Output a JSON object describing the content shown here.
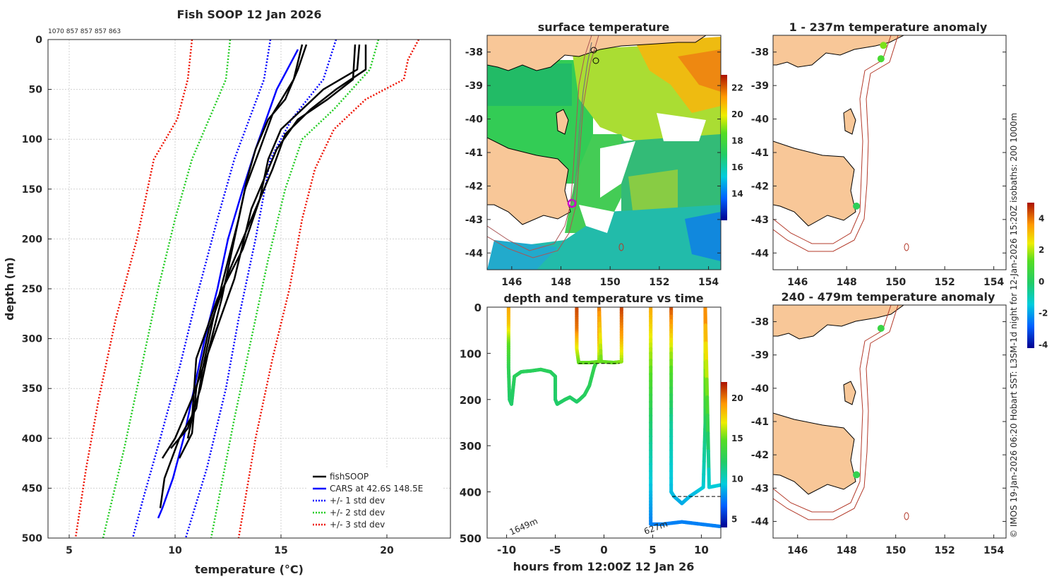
{
  "colors": {
    "land": "#f8c798",
    "coast": "#000000",
    "isobath": "#b33a2a",
    "fish": "#000000",
    "cars": "#0000ff",
    "sd1": "#0000ff",
    "sd2": "#22cc22",
    "sd3": "#ee1100"
  },
  "chart_data": [
    {
      "id": "profile",
      "type": "line",
      "title": "Fish SOOP 12 Jan 2026",
      "annotation": "1070 857 857 857 863",
      "xlabel": "temperature (°C)",
      "ylabel": "depth (m)",
      "xlim": [
        4,
        23
      ],
      "ylim": [
        500,
        0
      ],
      "xticks": [
        "5",
        "10",
        "15",
        "20"
      ],
      "yticks": [
        "0",
        "50",
        "100",
        "150",
        "200",
        "250",
        "300",
        "350",
        "400",
        "450",
        "500"
      ],
      "legend": [
        "fishSOOP",
        "CARS at 42.6S 148.5E",
        "+/- 1 std dev",
        "+/- 2 std dev",
        "+/- 3 std dev"
      ],
      "series": [
        {
          "name": "CARS at 42.6S 148.5E",
          "style": "solid",
          "color": "cars",
          "points": [
            [
              15.8,
              10
            ],
            [
              15.3,
              30
            ],
            [
              14.8,
              50
            ],
            [
              14.3,
              80
            ],
            [
              13.8,
              110
            ],
            [
              13.2,
              150
            ],
            [
              12.5,
              200
            ],
            [
              12.0,
              250
            ],
            [
              11.4,
              300
            ],
            [
              10.9,
              350
            ],
            [
              10.4,
              400
            ],
            [
              9.9,
              440
            ],
            [
              9.4,
              470
            ],
            [
              9.2,
              480
            ]
          ]
        },
        {
          "name": "-1 std dev",
          "style": "dot",
          "color": "sd1",
          "points": [
            [
              14.5,
              0
            ],
            [
              14.2,
              40
            ],
            [
              13.5,
              80
            ],
            [
              12.8,
              120
            ],
            [
              12.0,
              180
            ],
            [
              11.0,
              260
            ],
            [
              10.2,
              330
            ],
            [
              9.3,
              400
            ],
            [
              8.5,
              460
            ],
            [
              8.0,
              500
            ]
          ]
        },
        {
          "name": "+1 std dev",
          "style": "dot",
          "color": "sd1",
          "points": [
            [
              17.6,
              0
            ],
            [
              17.0,
              40
            ],
            [
              15.5,
              80
            ],
            [
              14.5,
              120
            ],
            [
              13.8,
              200
            ],
            [
              13.0,
              280
            ],
            [
              12.4,
              350
            ],
            [
              11.5,
              430
            ],
            [
              10.5,
              500
            ]
          ]
        },
        {
          "name": "-2 std dev",
          "style": "dot",
          "color": "sd2",
          "points": [
            [
              12.6,
              0
            ],
            [
              12.4,
              40
            ],
            [
              11.6,
              80
            ],
            [
              10.8,
              120
            ],
            [
              10.0,
              180
            ],
            [
              9.2,
              250
            ],
            [
              8.4,
              330
            ],
            [
              7.6,
              410
            ],
            [
              6.6,
              500
            ]
          ]
        },
        {
          "name": "+2 std dev",
          "style": "dot",
          "color": "sd2",
          "points": [
            [
              19.6,
              0
            ],
            [
              19.2,
              30
            ],
            [
              17.5,
              70
            ],
            [
              16.0,
              100
            ],
            [
              15.2,
              150
            ],
            [
              14.4,
              220
            ],
            [
              13.6,
              300
            ],
            [
              12.8,
              380
            ],
            [
              11.7,
              500
            ]
          ]
        },
        {
          "name": "-3 std dev",
          "style": "dot",
          "color": "sd3",
          "points": [
            [
              10.8,
              0
            ],
            [
              10.6,
              40
            ],
            [
              10.1,
              80
            ],
            [
              9.0,
              120
            ],
            [
              8.2,
              200
            ],
            [
              7.2,
              280
            ],
            [
              6.4,
              360
            ],
            [
              5.8,
              430
            ],
            [
              5.3,
              500
            ]
          ]
        },
        {
          "name": "+3 std dev",
          "style": "dot",
          "color": "sd3",
          "points": [
            [
              21.5,
              0
            ],
            [
              21.0,
              20
            ],
            [
              20.8,
              40
            ],
            [
              19.0,
              60
            ],
            [
              17.5,
              90
            ],
            [
              16.6,
              130
            ],
            [
              16.0,
              180
            ],
            [
              15.4,
              250
            ],
            [
              14.6,
              320
            ],
            [
              13.8,
              400
            ],
            [
              13.0,
              500
            ]
          ]
        },
        {
          "name": "fishSOOP 1",
          "style": "solid",
          "color": "fish",
          "points": [
            [
              16.2,
              5
            ],
            [
              15.8,
              30
            ],
            [
              15.2,
              60
            ],
            [
              14.4,
              80
            ],
            [
              13.8,
              110
            ],
            [
              13.4,
              140
            ],
            [
              13.0,
              180
            ],
            [
              12.4,
              230
            ],
            [
              11.8,
              280
            ],
            [
              11.3,
              330
            ],
            [
              11.0,
              370
            ],
            [
              10.2,
              400
            ],
            [
              9.5,
              440
            ],
            [
              9.3,
              470
            ]
          ]
        },
        {
          "name": "fishSOOP 2",
          "style": "solid",
          "color": "fish",
          "points": [
            [
              16.0,
              5
            ],
            [
              15.6,
              40
            ],
            [
              14.6,
              75
            ],
            [
              14.0,
              110
            ],
            [
              13.3,
              150
            ],
            [
              12.8,
              200
            ],
            [
              12.2,
              260
            ],
            [
              11.6,
              310
            ],
            [
              11.2,
              350
            ],
            [
              10.6,
              390
            ],
            [
              9.8,
              410
            ]
          ]
        },
        {
          "name": "fishSOOP 3",
          "style": "solid",
          "color": "fish",
          "points": [
            [
              18.7,
              5
            ],
            [
              18.6,
              30
            ],
            [
              17.0,
              50
            ],
            [
              16.0,
              70
            ],
            [
              15.0,
              90
            ],
            [
              14.4,
              120
            ],
            [
              14.0,
              160
            ],
            [
              13.2,
              210
            ],
            [
              12.0,
              260
            ],
            [
              11.0,
              320
            ],
            [
              10.8,
              380
            ],
            [
              10.6,
              400
            ]
          ]
        },
        {
          "name": "fishSOOP 4",
          "style": "solid",
          "color": "fish",
          "points": [
            [
              19.0,
              5
            ],
            [
              19.0,
              30
            ],
            [
              17.6,
              50
            ],
            [
              16.4,
              70
            ],
            [
              15.2,
              95
            ],
            [
              14.6,
              130
            ],
            [
              13.8,
              170
            ],
            [
              12.6,
              230
            ],
            [
              11.6,
              290
            ],
            [
              11.0,
              350
            ],
            [
              10.8,
              395
            ],
            [
              10.2,
              420
            ]
          ]
        },
        {
          "name": "fishSOOP 5",
          "style": "solid",
          "color": "fish",
          "points": [
            [
              18.5,
              5
            ],
            [
              18.4,
              40
            ],
            [
              17.2,
              60
            ],
            [
              15.8,
              80
            ],
            [
              14.8,
              110
            ],
            [
              13.6,
              170
            ],
            [
              12.8,
              240
            ],
            [
              11.8,
              300
            ],
            [
              10.8,
              360
            ],
            [
              10.0,
              400
            ],
            [
              9.4,
              420
            ]
          ]
        }
      ]
    },
    {
      "id": "sst",
      "type": "heatmap",
      "title": "surface temperature",
      "xlim": [
        145,
        154.5
      ],
      "ylim": [
        -44.5,
        -37.5
      ],
      "xticks": [
        "146",
        "148",
        "150",
        "152",
        "154"
      ],
      "yticks": [
        "-38",
        "-39",
        "-40",
        "-41",
        "-42",
        "-43",
        "-44"
      ],
      "colorbar": {
        "min": 12,
        "max": 23,
        "ticks": [
          "14",
          "16",
          "18",
          "20",
          "22"
        ]
      }
    },
    {
      "id": "depthtime",
      "type": "scatter",
      "title": "depth and temperature vs time",
      "xlabel": "hours from 12:00Z 12 Jan 26",
      "xlim": [
        -12,
        12
      ],
      "ylim": [
        500,
        0
      ],
      "xticks": [
        "-10",
        "-5",
        "0",
        "5",
        "10"
      ],
      "yticks": [
        "0",
        "100",
        "200",
        "300",
        "400",
        "500"
      ],
      "annotations": [
        "1649m",
        "627m"
      ],
      "colorbar": {
        "min": 4,
        "max": 22,
        "ticks": [
          "5",
          "10",
          "15",
          "20"
        ]
      },
      "tracks": [
        {
          "points": [
            [
              -9.8,
              0,
              19
            ],
            [
              -9.8,
              40,
              18
            ],
            [
              -9.8,
              80,
              15
            ],
            [
              -9.8,
              130,
              13
            ],
            [
              -9.7,
              200,
              12
            ],
            [
              -9.5,
              210,
              12
            ],
            [
              -9.2,
              150,
              12.5
            ],
            [
              -8.5,
              140,
              12.5
            ],
            [
              -7.5,
              138,
              12.5
            ],
            [
              -6.5,
              135,
              12.5
            ],
            [
              -5.5,
              140,
              12.5
            ],
            [
              -5,
              150,
              12.3
            ],
            [
              -5,
              200,
              12
            ],
            [
              -4.8,
              210,
              12
            ],
            [
              -4,
              200,
              12.2
            ],
            [
              -3.5,
              195,
              12.2
            ],
            [
              -2.8,
              205,
              12
            ],
            [
              -2.5,
              200,
              12.2
            ],
            [
              -2,
              190,
              12.4
            ],
            [
              -1.5,
              170,
              12.5
            ],
            [
              -1,
              130,
              13
            ],
            [
              -0.8,
              120,
              13.5
            ]
          ]
        },
        {
          "points": [
            [
              -2.8,
              0,
              21
            ],
            [
              -2.8,
              50,
              20
            ],
            [
              -2.8,
              90,
              17
            ],
            [
              -2.6,
              120,
              15
            ],
            [
              -1.5,
              120,
              15
            ],
            [
              -0.5,
              118,
              15
            ],
            [
              -0.5,
              60,
              19
            ],
            [
              -0.5,
              0,
              20
            ],
            [
              -0.3,
              118,
              15
            ],
            [
              1,
              120,
              15
            ],
            [
              1.8,
              118,
              15.5
            ],
            [
              1.8,
              60,
              19
            ],
            [
              1.8,
              0,
              21
            ]
          ]
        },
        {
          "points": [
            [
              4.8,
              0,
              19
            ],
            [
              4.8,
              100,
              16
            ],
            [
              4.8,
              250,
              12
            ],
            [
              4.8,
              400,
              9
            ],
            [
              4.8,
              470,
              7.5
            ],
            [
              6,
              470,
              7.5
            ],
            [
              8,
              465,
              7.5
            ],
            [
              10,
              470,
              7.5
            ],
            [
              12,
              475,
              7.5
            ]
          ]
        },
        {
          "points": [
            [
              6.9,
              0,
              21
            ],
            [
              6.9,
              100,
              16
            ],
            [
              6.9,
              250,
              11
            ],
            [
              6.9,
              400,
              9
            ],
            [
              7.2,
              410,
              9
            ],
            [
              8,
              425,
              8.5
            ],
            [
              8.8,
              410,
              9
            ],
            [
              9.5,
              400,
              9
            ],
            [
              10.2,
              390,
              9.5
            ],
            [
              10.4,
              250,
              12
            ],
            [
              10.4,
              80,
              17
            ],
            [
              10.4,
              0,
              20
            ],
            [
              10.8,
              390,
              9.5
            ],
            [
              12,
              385,
              9.5
            ]
          ]
        }
      ],
      "refs": [
        {
          "x": [
            -2.6,
            1.6
          ],
          "y": 122
        },
        {
          "x": [
            7.0,
            12.2
          ],
          "y": 410
        }
      ]
    },
    {
      "id": "anom1",
      "type": "scatter",
      "title": "1 - 237m temperature anomaly",
      "xlim": [
        145,
        154.5
      ],
      "ylim": [
        -44.5,
        -37.5
      ],
      "xticks": [
        "146",
        "148",
        "150",
        "152",
        "154"
      ],
      "yticks": [
        "-38",
        "-39",
        "-40",
        "-41",
        "-42",
        "-43",
        "-44"
      ],
      "points": [
        [
          149.5,
          -37.8,
          1.6
        ],
        [
          149.4,
          -38.2,
          1.0
        ],
        [
          148.4,
          -42.6,
          0.2
        ]
      ]
    },
    {
      "id": "anom2",
      "type": "scatter",
      "title": "240 - 479m temperature anomaly",
      "xlim": [
        145,
        154.5
      ],
      "ylim": [
        -44.5,
        -37.5
      ],
      "xticks": [
        "146",
        "148",
        "150",
        "152",
        "154"
      ],
      "yticks": [
        "-38",
        "-39",
        "-40",
        "-41",
        "-42",
        "-43",
        "-44"
      ],
      "points": [
        [
          149.4,
          -38.2,
          0.6
        ],
        [
          148.4,
          -42.6,
          0.4
        ]
      ]
    },
    {
      "id": "anomcb",
      "type": "heatmap",
      "colorbar": {
        "min": -4.2,
        "max": 5,
        "ticks": [
          "-4",
          "-2",
          "0",
          "2",
          "4"
        ]
      }
    }
  ],
  "side_note": "© IMOS 19-Jan-2026 06:20 Hobart SST: L3SM-1d night for 12-Jan-2026 15:20Z isobaths: 200  1000m"
}
